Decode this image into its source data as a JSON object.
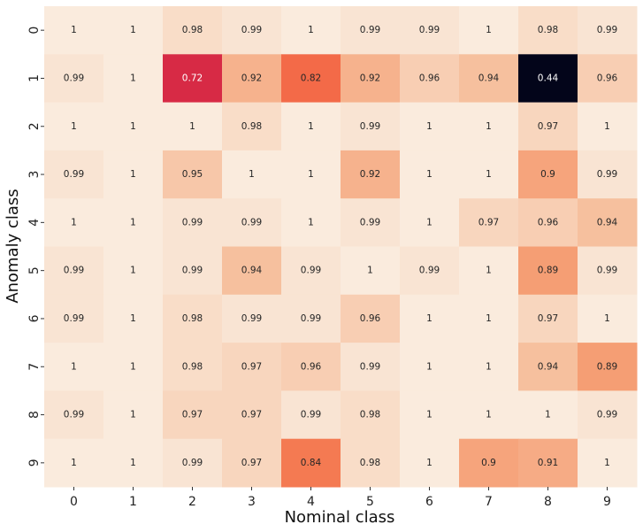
{
  "chart_data": {
    "type": "heatmap",
    "xlabel": "Nominal class",
    "ylabel": "Anomaly class",
    "x_categories": [
      "0",
      "1",
      "2",
      "3",
      "4",
      "5",
      "6",
      "7",
      "8",
      "9"
    ],
    "y_categories": [
      "0",
      "1",
      "2",
      "3",
      "4",
      "5",
      "6",
      "7",
      "8",
      "9"
    ],
    "colorbar": false,
    "color_range": [
      0.44,
      1.0
    ],
    "values": [
      [
        1,
        1,
        0.98,
        0.99,
        1,
        0.99,
        0.99,
        1,
        0.98,
        0.99
      ],
      [
        0.99,
        1,
        0.72,
        0.92,
        0.82,
        0.92,
        0.96,
        0.94,
        0.44,
        0.96
      ],
      [
        1,
        1,
        1,
        0.98,
        1,
        0.99,
        1,
        1,
        0.97,
        1
      ],
      [
        0.99,
        1,
        0.95,
        1,
        1,
        0.92,
        1,
        1,
        0.9,
        0.99
      ],
      [
        1,
        1,
        0.99,
        0.99,
        1,
        0.99,
        1,
        0.97,
        0.96,
        0.94
      ],
      [
        0.99,
        1,
        0.99,
        0.94,
        0.99,
        1,
        0.99,
        1,
        0.89,
        0.99
      ],
      [
        0.99,
        1,
        0.98,
        0.99,
        0.99,
        0.96,
        1,
        1,
        0.97,
        1
      ],
      [
        1,
        1,
        0.98,
        0.97,
        0.96,
        0.99,
        1,
        1,
        0.94,
        0.89
      ],
      [
        0.99,
        1,
        0.97,
        0.97,
        0.99,
        0.98,
        1,
        1,
        1,
        0.99
      ],
      [
        1,
        1,
        0.99,
        0.97,
        0.84,
        0.98,
        1,
        0.9,
        0.91,
        1
      ]
    ]
  }
}
